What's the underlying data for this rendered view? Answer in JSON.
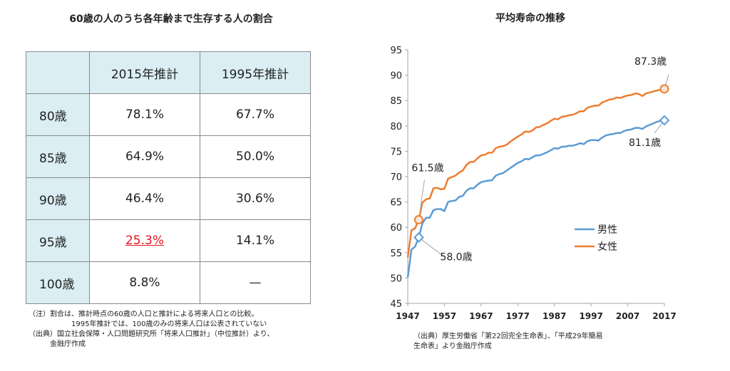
{
  "left_panel": {
    "title": "60歳の人のうち各年齢まで生存する人の割合",
    "table": {
      "headers": [
        "",
        "2015年推計",
        "1995年推計"
      ],
      "rows": [
        {
          "age": "80歳",
          "v2015": "78.1%",
          "v1995": "67.7%"
        },
        {
          "age": "85歳",
          "v2015": "64.9%",
          "v1995": "50.0%"
        },
        {
          "age": "90歳",
          "v2015": "46.4%",
          "v1995": "30.6%"
        },
        {
          "age": "95歳",
          "v2015": "25.3%",
          "v1995": "14.1%"
        },
        {
          "age": "100歳",
          "v2015": "8.8%",
          "v1995": "—"
        }
      ],
      "highlight_color": "#e2161e",
      "header_bg": "#daeef3"
    },
    "notes": [
      "（注）割合は、推計時点の60歳の人口と推計による将来人口との比較。",
      "1995年推計では、100歳のみの将来人口は公表されていない",
      "（出典）国立社会保障・人口問題研究所「将来人口推計」（中位推計）より、",
      "金融庁作成"
    ]
  },
  "chart_data": {
    "type": "line",
    "title": "平均寿命の推移",
    "xlabel": "",
    "ylabel": "",
    "x_ticks": [
      1947,
      1957,
      1967,
      1977,
      1987,
      1997,
      2007,
      2017
    ],
    "y_ticks": [
      45,
      50,
      55,
      60,
      65,
      70,
      75,
      80,
      85,
      90,
      95
    ],
    "xlim": [
      1947,
      2017
    ],
    "ylim": [
      45,
      95
    ],
    "grid": false,
    "legend": "center-right",
    "series": [
      {
        "name": "男性",
        "color": "#5b9bd5",
        "points": [
          [
            1947,
            50.1
          ],
          [
            1948,
            55.6
          ],
          [
            1949,
            56.2
          ],
          [
            1950,
            58.0
          ],
          [
            1951,
            60.8
          ],
          [
            1952,
            61.9
          ],
          [
            1953,
            61.9
          ],
          [
            1954,
            63.4
          ],
          [
            1955,
            63.6
          ],
          [
            1956,
            63.6
          ],
          [
            1957,
            63.2
          ],
          [
            1958,
            65.0
          ],
          [
            1959,
            65.2
          ],
          [
            1960,
            65.3
          ],
          [
            1961,
            66.0
          ],
          [
            1962,
            66.2
          ],
          [
            1963,
            67.2
          ],
          [
            1964,
            67.7
          ],
          [
            1965,
            67.7
          ],
          [
            1966,
            68.4
          ],
          [
            1967,
            68.9
          ],
          [
            1968,
            69.1
          ],
          [
            1969,
            69.2
          ],
          [
            1970,
            69.3
          ],
          [
            1971,
            70.2
          ],
          [
            1972,
            70.5
          ],
          [
            1973,
            70.7
          ],
          [
            1974,
            71.2
          ],
          [
            1975,
            71.7
          ],
          [
            1976,
            72.2
          ],
          [
            1977,
            72.7
          ],
          [
            1978,
            73.0
          ],
          [
            1979,
            73.5
          ],
          [
            1980,
            73.4
          ],
          [
            1981,
            73.8
          ],
          [
            1982,
            74.2
          ],
          [
            1983,
            74.2
          ],
          [
            1984,
            74.5
          ],
          [
            1985,
            74.8
          ],
          [
            1986,
            75.2
          ],
          [
            1987,
            75.6
          ],
          [
            1988,
            75.5
          ],
          [
            1989,
            75.9
          ],
          [
            1990,
            75.9
          ],
          [
            1991,
            76.1
          ],
          [
            1992,
            76.1
          ],
          [
            1993,
            76.3
          ],
          [
            1994,
            76.6
          ],
          [
            1995,
            76.4
          ],
          [
            1996,
            77.0
          ],
          [
            1997,
            77.2
          ],
          [
            1998,
            77.2
          ],
          [
            1999,
            77.1
          ],
          [
            2000,
            77.7
          ],
          [
            2001,
            78.1
          ],
          [
            2002,
            78.3
          ],
          [
            2003,
            78.4
          ],
          [
            2004,
            78.6
          ],
          [
            2005,
            78.6
          ],
          [
            2006,
            79.0
          ],
          [
            2007,
            79.2
          ],
          [
            2008,
            79.3
          ],
          [
            2009,
            79.6
          ],
          [
            2010,
            79.6
          ],
          [
            2011,
            79.4
          ],
          [
            2012,
            79.9
          ],
          [
            2013,
            80.2
          ],
          [
            2014,
            80.5
          ],
          [
            2015,
            80.8
          ],
          [
            2016,
            81.0
          ],
          [
            2017,
            81.1
          ]
        ],
        "annotations": [
          {
            "x": 1950,
            "y": 58.0,
            "label": "58.0歳"
          },
          {
            "x": 2017,
            "y": 81.1,
            "label": "81.1歳"
          }
        ]
      },
      {
        "name": "女性",
        "color": "#ed7d31",
        "points": [
          [
            1947,
            54.0
          ],
          [
            1948,
            59.4
          ],
          [
            1949,
            59.8
          ],
          [
            1950,
            61.5
          ],
          [
            1951,
            64.9
          ],
          [
            1952,
            65.5
          ],
          [
            1953,
            65.7
          ],
          [
            1954,
            67.7
          ],
          [
            1955,
            67.8
          ],
          [
            1956,
            67.5
          ],
          [
            1957,
            67.6
          ],
          [
            1958,
            69.6
          ],
          [
            1959,
            69.9
          ],
          [
            1960,
            70.2
          ],
          [
            1961,
            70.8
          ],
          [
            1962,
            71.2
          ],
          [
            1963,
            72.3
          ],
          [
            1964,
            72.9
          ],
          [
            1965,
            72.9
          ],
          [
            1966,
            73.6
          ],
          [
            1967,
            74.2
          ],
          [
            1968,
            74.3
          ],
          [
            1969,
            74.7
          ],
          [
            1970,
            74.7
          ],
          [
            1971,
            75.6
          ],
          [
            1972,
            75.9
          ],
          [
            1973,
            76.0
          ],
          [
            1974,
            76.3
          ],
          [
            1975,
            76.9
          ],
          [
            1976,
            77.4
          ],
          [
            1977,
            77.9
          ],
          [
            1978,
            78.3
          ],
          [
            1979,
            78.9
          ],
          [
            1980,
            78.8
          ],
          [
            1981,
            79.1
          ],
          [
            1982,
            79.7
          ],
          [
            1983,
            79.8
          ],
          [
            1984,
            80.2
          ],
          [
            1985,
            80.5
          ],
          [
            1986,
            81.0
          ],
          [
            1987,
            81.4
          ],
          [
            1988,
            81.3
          ],
          [
            1989,
            81.8
          ],
          [
            1990,
            81.9
          ],
          [
            1991,
            82.1
          ],
          [
            1992,
            82.2
          ],
          [
            1993,
            82.5
          ],
          [
            1994,
            82.9
          ],
          [
            1995,
            82.9
          ],
          [
            1996,
            83.6
          ],
          [
            1997,
            83.8
          ],
          [
            1998,
            84.0
          ],
          [
            1999,
            84.0
          ],
          [
            2000,
            84.6
          ],
          [
            2001,
            84.9
          ],
          [
            2002,
            85.2
          ],
          [
            2003,
            85.3
          ],
          [
            2004,
            85.6
          ],
          [
            2005,
            85.5
          ],
          [
            2006,
            85.8
          ],
          [
            2007,
            86.0
          ],
          [
            2008,
            86.1
          ],
          [
            2009,
            86.4
          ],
          [
            2010,
            86.3
          ],
          [
            2011,
            85.9
          ],
          [
            2012,
            86.4
          ],
          [
            2013,
            86.6
          ],
          [
            2014,
            86.8
          ],
          [
            2015,
            87.0
          ],
          [
            2016,
            87.1
          ],
          [
            2017,
            87.3
          ]
        ],
        "annotations": [
          {
            "x": 1950,
            "y": 61.5,
            "label": "61.5歳"
          },
          {
            "x": 2017,
            "y": 87.3,
            "label": "87.3歳"
          }
        ]
      }
    ]
  },
  "right_panel": {
    "source": [
      "（出典）厚生労働省「第22回完全生命表」、「平成29年簡易",
      "生命表」より金融庁作成"
    ]
  }
}
